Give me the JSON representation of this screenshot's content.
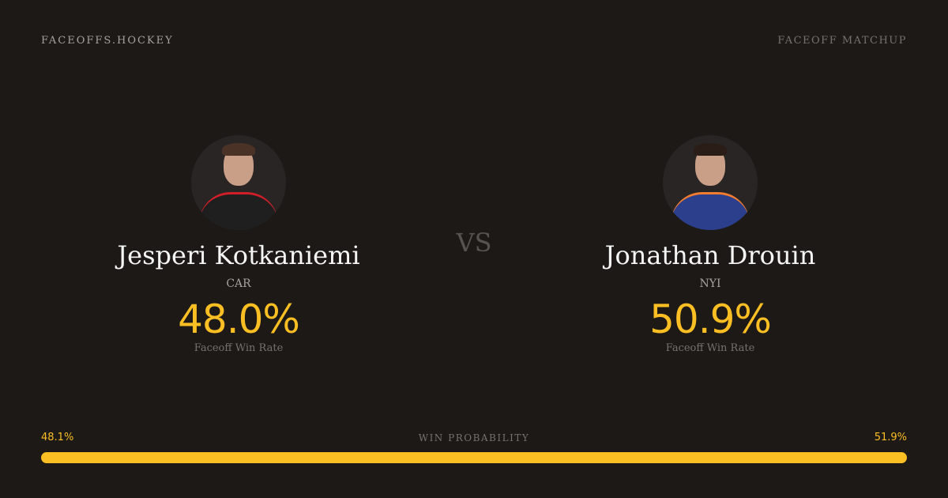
{
  "header": {
    "brand": "FACEOFFS.HOCKEY",
    "page_type": "FACEOFF MATCHUP"
  },
  "players": [
    {
      "name": "Jesperi Kotkaniemi",
      "team": "CAR",
      "win_rate": "48.0%",
      "win_rate_label": "Faceoff Win Rate"
    },
    {
      "name": "Jonathan Drouin",
      "team": "NYI",
      "win_rate": "50.9%",
      "win_rate_label": "Faceoff Win Rate"
    }
  ],
  "vs": "VS",
  "win_probability": {
    "label": "WIN PROBABILITY",
    "left": "48.1%",
    "right": "51.9%",
    "left_value": 48.1,
    "right_value": 51.9
  },
  "colors": {
    "accent": "#fbbf24",
    "background": "#1c1917"
  }
}
